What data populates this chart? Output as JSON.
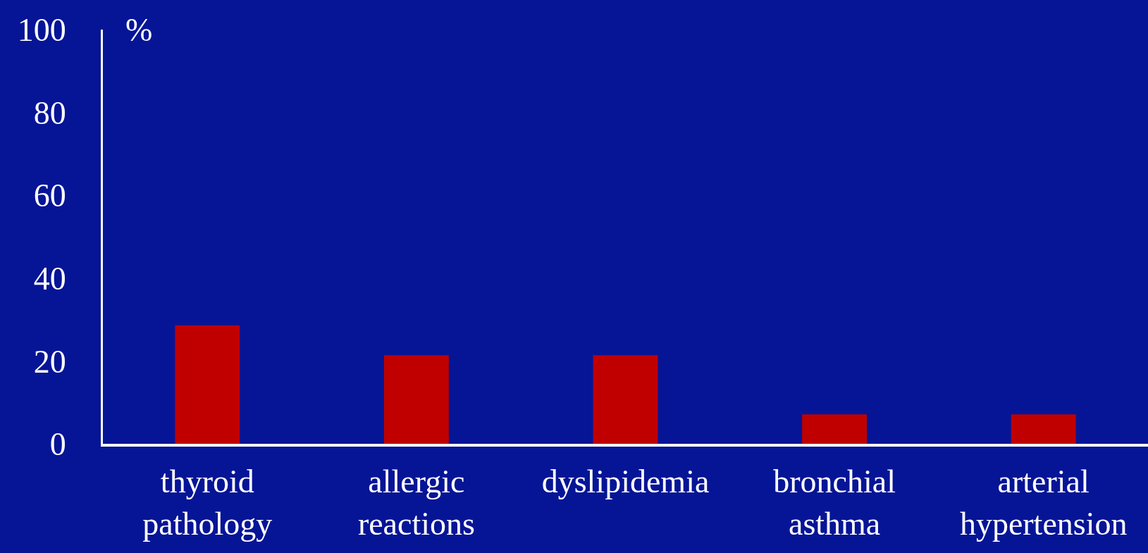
{
  "chart_data": {
    "type": "bar",
    "ylabel": "%",
    "categories": [
      "thyroid pathology",
      "allergic reactions",
      "dyslipidemia",
      "bronchial asthma",
      "arterial hypertension"
    ],
    "values": [
      28.6,
      21.4,
      21.4,
      7.1,
      7.1
    ],
    "color": "#c00000",
    "ylim": [
      0,
      100
    ],
    "yticks": [
      0,
      20,
      40,
      60,
      80,
      100
    ],
    "grid": false,
    "legend": false
  }
}
